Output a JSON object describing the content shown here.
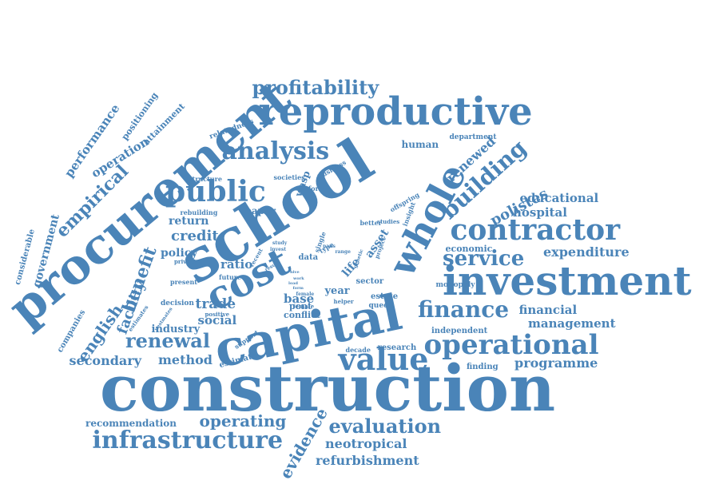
{
  "colors": {
    "word": "#4a84b8",
    "background": "#ffffff"
  },
  "words": [
    "construction",
    "capital",
    "school",
    "procurement",
    "investment",
    "cost",
    "whole",
    "reproductive",
    "operational",
    "contractor",
    "analysis",
    "public",
    "value",
    "infrastructure",
    "building",
    "finance",
    "renewal",
    "evaluation",
    "profitability",
    "service",
    "benefit",
    "empirical",
    "english",
    "facility",
    "expenditure",
    "polistes",
    "renewed",
    "operating",
    "evidence",
    "neotropical",
    "refurbishment",
    "secondary",
    "method",
    "programme",
    "management",
    "financial",
    "educational",
    "hospital",
    "credit",
    "return",
    "trade",
    "social",
    "ratio",
    "life",
    "asset",
    "paper",
    "human",
    "department",
    "economic",
    "performance",
    "government",
    "operation",
    "attainment",
    "positioning",
    "relatedness",
    "recommendation",
    "considerable",
    "industry",
    "policy",
    "base",
    "year",
    "conflict",
    "pont",
    "estimate",
    "research",
    "decade",
    "finding",
    "independent",
    "monopoly",
    "estate",
    "queen",
    "sector",
    "companies",
    "decision",
    "positive",
    "support",
    "present",
    "future",
    "private",
    "rebuilding",
    "structure",
    "societies",
    "wasp",
    "inform",
    "business",
    "offspring",
    "better",
    "studies",
    "single",
    "insight",
    "project",
    "data",
    "female",
    "helper",
    "invest",
    "study",
    "type",
    "range",
    "genetic",
    "female",
    "recent",
    "estimates",
    "work",
    "load",
    "nestmates",
    "result",
    "form",
    "paus",
    "hive"
  ]
}
